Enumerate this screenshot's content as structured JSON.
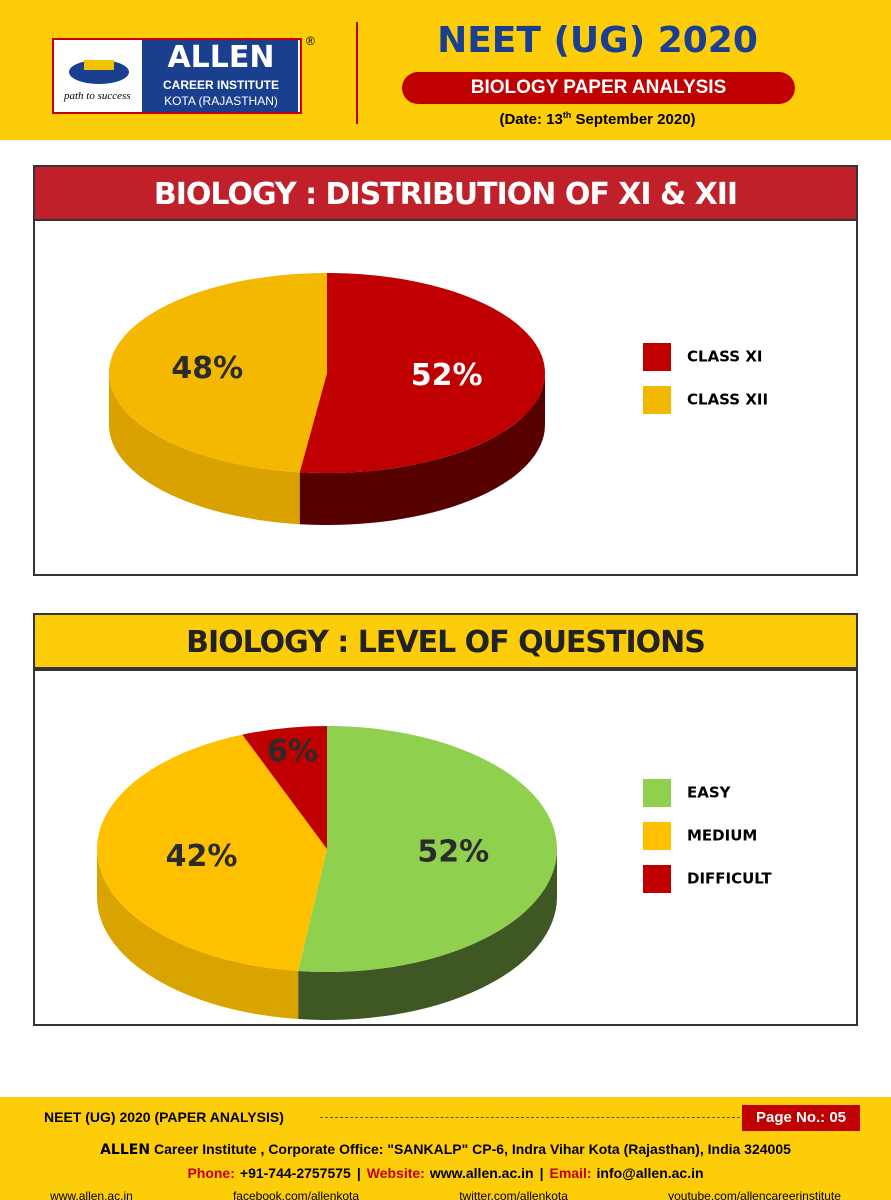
{
  "header": {
    "logo": {
      "brand": "ALLEN",
      "registered": "®",
      "institute": "CAREER INSTITUTE",
      "location": "KOTA (RAJASTHAN)",
      "tagline": "path to success"
    },
    "title": "NEET (UG) 2020",
    "subtitle": "BIOLOGY PAPER ANALYSIS",
    "date_prefix": "(Date: 13",
    "date_sup": "th",
    "date_suffix": "September 2020)"
  },
  "chart_data": [
    {
      "type": "pie",
      "title": "BIOLOGY : DISTRIBUTION OF XI & XII",
      "categories": [
        "CLASS XI",
        "CLASS XII"
      ],
      "values": [
        52,
        48
      ],
      "value_labels": [
        "52%",
        "48%"
      ],
      "colors": [
        "#c00000",
        "#f5b800"
      ],
      "side_colors": [
        "#560000",
        "#d9a200"
      ]
    },
    {
      "type": "pie",
      "title": "BIOLOGY : LEVEL OF QUESTIONS",
      "categories": [
        "EASY",
        "MEDIUM",
        "DIFFICULT"
      ],
      "values": [
        52,
        42,
        6
      ],
      "value_labels": [
        "52%",
        "42%",
        "6%"
      ],
      "colors": [
        "#8fd14f",
        "#ffc000",
        "#c00000"
      ],
      "side_colors": [
        "#3f5722",
        "#d9a300",
        "#6b0000"
      ]
    }
  ],
  "footer": {
    "label": "NEET (UG) 2020 (PAPER ANALYSIS)",
    "page": "Page No.: 05",
    "address_brand": "ALLEN",
    "address": "Career Institute , Corporate Office: \"SANKALP\" CP-6, Indra Vihar Kota (Rajasthan), India 324005",
    "separator": "|",
    "contacts": [
      {
        "label": "Phone:",
        "value": "+91-744-2757575"
      },
      {
        "label": "Website:",
        "value": "www.allen.ac.in"
      },
      {
        "label": "Email:",
        "value": "info@allen.ac.in"
      }
    ],
    "links": [
      "www.allen.ac.in",
      "facebook.com/allenkota",
      "twitter.com/allenkota",
      "youtube.com/allencareerinstitute"
    ]
  }
}
